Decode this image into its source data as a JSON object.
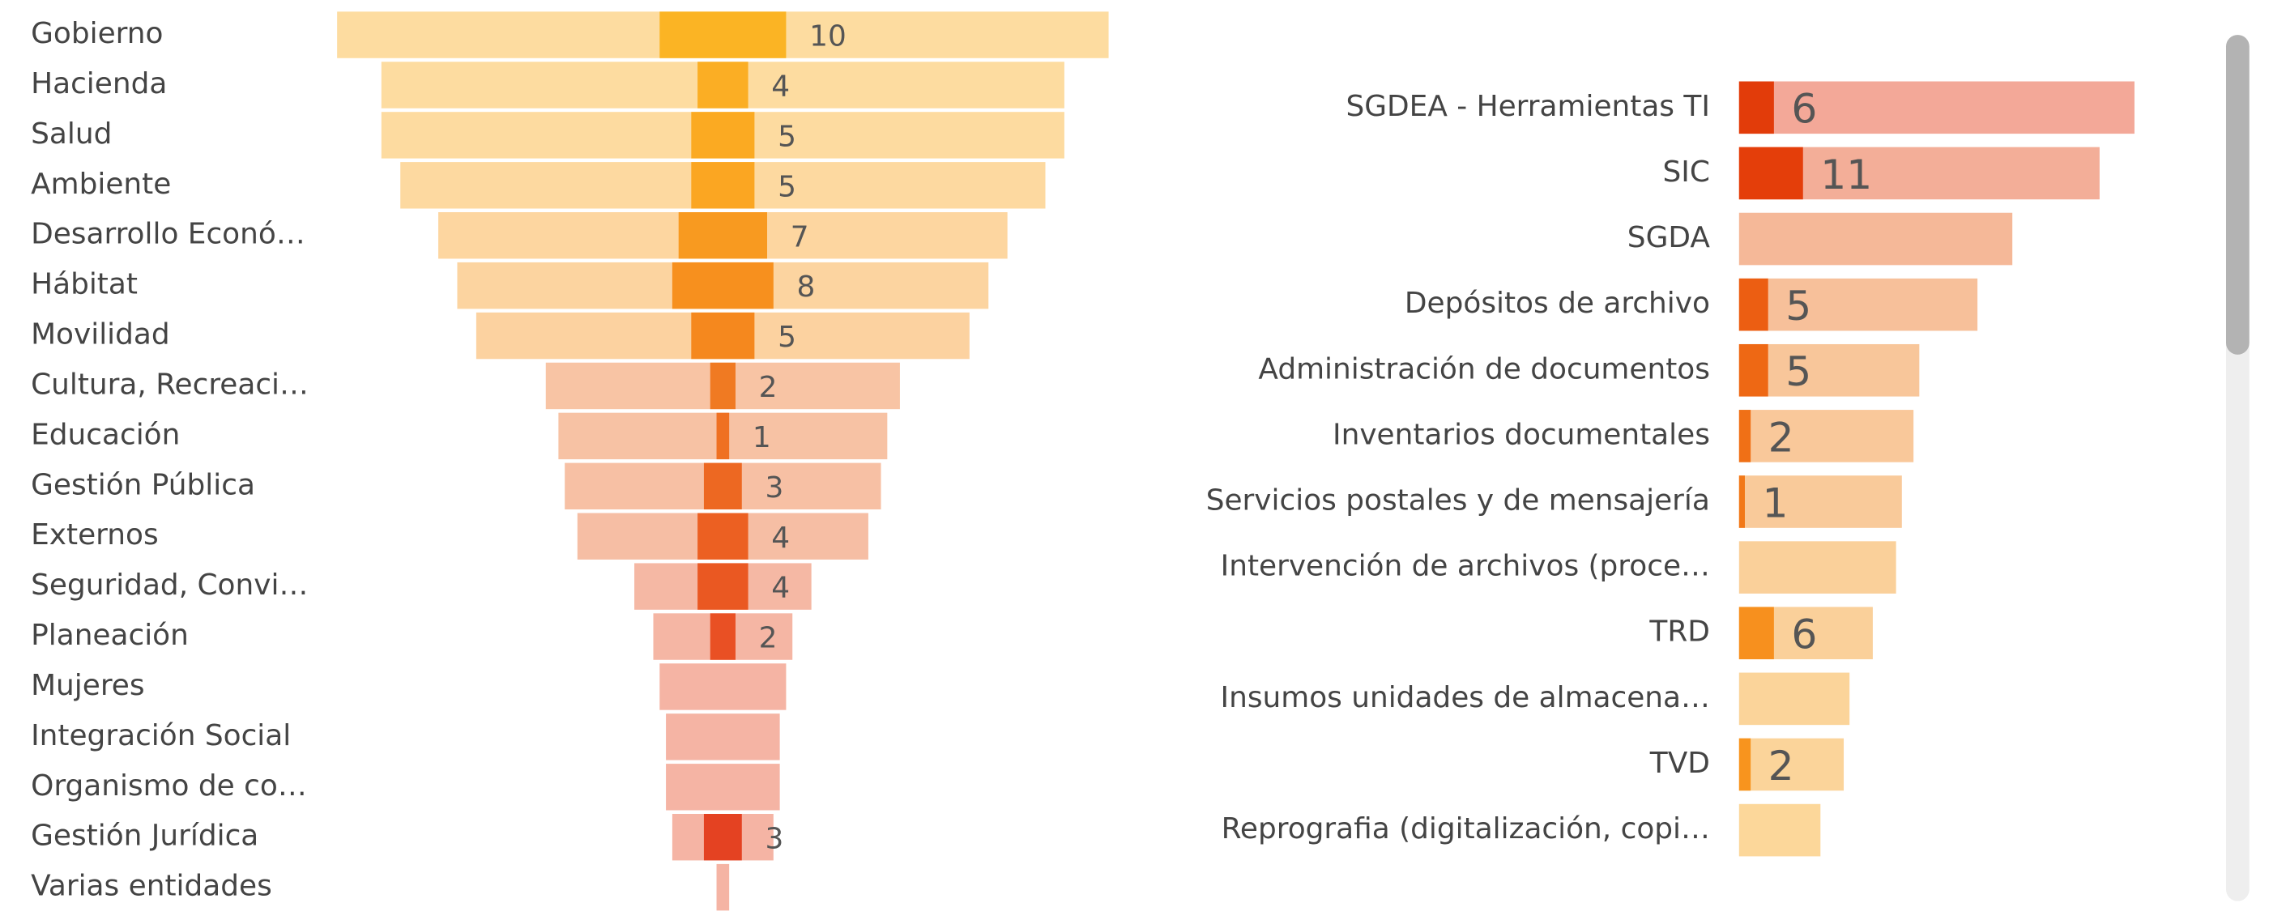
{
  "chart_data": [
    {
      "type": "funnel",
      "categories": [
        "Gobierno",
        "Hacienda",
        "Salud",
        "Ambiente",
        "Desarrollo Econó…",
        "Hábitat",
        "Movilidad",
        "Cultura, Recreaci…",
        "Educación",
        "Gestión Pública",
        "Externos",
        "Seguridad, Convi…",
        "Planeación",
        "Mujeres",
        "Integración Social",
        "Organismo de co…",
        "Gestión Jurídica",
        "Varias entidades"
      ],
      "outer_values": [
        61,
        54,
        54,
        51,
        45,
        42,
        39,
        28,
        26,
        25,
        23,
        14,
        11,
        10,
        9,
        9,
        8,
        1
      ],
      "values": [
        10,
        4,
        5,
        5,
        7,
        8,
        5,
        2,
        1,
        3,
        4,
        4,
        2,
        null,
        null,
        null,
        3,
        null
      ],
      "outer_colors": [
        "#fddca0",
        "#fddca0",
        "#fddba0",
        "#fdd9a0",
        "#fdd6a0",
        "#fcd4a0",
        "#fcd2a0",
        "#f8c4a4",
        "#f7c2a4",
        "#f7c0a4",
        "#f6bea4",
        "#f5b8a4",
        "#f5b6a4",
        "#f5b4a4",
        "#f5b4a4",
        "#f5b4a4",
        "#f5b4a4",
        "#f5b4a4"
      ],
      "colors": [
        "#fbb424",
        "#fbae24",
        "#fbaa22",
        "#fba622",
        "#f89a20",
        "#f7901e",
        "#f5881e",
        "#f07a22",
        "#ef7022",
        "#ed6822",
        "#ec6022",
        "#ea5822",
        "#e95024",
        "#e84a22",
        "#e84a22",
        "#e84a22",
        "#e44222",
        "#e84a22"
      ],
      "xlim": [
        0,
        70
      ]
    },
    {
      "type": "bar",
      "categories": [
        "SGDEA - Herramientas TI",
        "SIC",
        "SGDA",
        "Depósitos de archivo",
        "Administración de documentos",
        "Inventarios documentales",
        "Servicios postales y de mensajería",
        "Intervención de archivos (proce…",
        "TRD",
        "Insumos unidades de almacena…",
        "TVD",
        "Reprografia (digitalización, copi…"
      ],
      "outer_values": [
        68,
        62,
        47,
        41,
        31,
        30,
        28,
        27,
        23,
        19,
        18,
        14
      ],
      "values": [
        6,
        11,
        null,
        5,
        5,
        2,
        1,
        null,
        6,
        null,
        2,
        null
      ],
      "outer_colors": [
        "#f3a898",
        "#f3ae98",
        "#f5b898",
        "#f7c09a",
        "#f8c69a",
        "#f9c89a",
        "#f9ca9a",
        "#fad09a",
        "#fad09a",
        "#fbd49a",
        "#fbd49a",
        "#fcd79a"
      ],
      "colors": [
        "#e23c0a",
        "#e43e0a",
        "#e8500e",
        "#ec5e12",
        "#ee6814",
        "#f07016",
        "#f27818",
        "#f4801a",
        "#f7901e",
        "#f8941e",
        "#f8941e",
        "#f8961e"
      ],
      "xlim": [
        0,
        80
      ]
    }
  ]
}
